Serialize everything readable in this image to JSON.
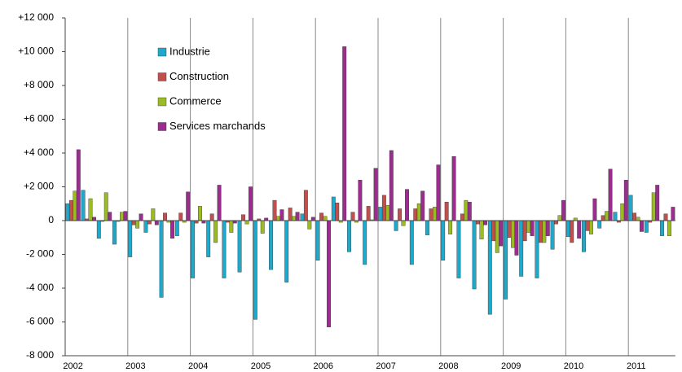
{
  "chart_data": {
    "type": "bar",
    "categories": [
      "2002",
      null,
      null,
      null,
      "2003",
      null,
      null,
      null,
      "2004",
      null,
      null,
      null,
      "2005",
      null,
      null,
      null,
      "2006",
      null,
      null,
      null,
      "2007",
      null,
      null,
      null,
      "2008",
      null,
      null,
      null,
      "2009",
      null,
      null,
      null,
      "2010",
      null,
      null,
      null,
      "2011",
      null,
      null
    ],
    "series": [
      {
        "name": "Industrie",
        "color": "#1fa8c9",
        "values": [
          1000,
          1800,
          -1050,
          -1400,
          -2150,
          -700,
          -4550,
          -900,
          -3400,
          -2150,
          -3400,
          -3050,
          -5850,
          -2900,
          -3650,
          400,
          -2350,
          1400,
          -1850,
          -2600,
          800,
          -600,
          -2600,
          -850,
          -2350,
          -3400,
          -4050,
          -5550,
          -4650,
          -3300,
          -3400,
          -1700,
          -950,
          -1850,
          -450,
          500,
          1500,
          -700,
          -900
        ]
      },
      {
        "name": "Construction",
        "color": "#c0504d",
        "values": [
          1200,
          100,
          -50,
          -50,
          -250,
          -200,
          450,
          450,
          -150,
          400,
          -100,
          350,
          100,
          1200,
          750,
          1800,
          450,
          1050,
          500,
          850,
          1500,
          700,
          700,
          700,
          1100,
          400,
          -200,
          -1200,
          -1000,
          -1200,
          -1300,
          -200,
          -1300,
          -600,
          300,
          -100,
          450,
          -100,
          400
        ]
      },
      {
        "name": "Commerce",
        "color": "#9bbb22",
        "values": [
          1750,
          1300,
          1650,
          500,
          -450,
          700,
          -100,
          -100,
          850,
          -1300,
          -700,
          -200,
          -750,
          250,
          250,
          -500,
          250,
          -100,
          -100,
          50,
          900,
          -300,
          1000,
          800,
          -800,
          1200,
          -1100,
          -1900,
          -1600,
          -700,
          -1300,
          300,
          150,
          -800,
          550,
          1000,
          200,
          1650,
          -900
        ]
      },
      {
        "name": "Services marchands",
        "color": "#9b2d8f",
        "values": [
          4200,
          200,
          500,
          550,
          400,
          -250,
          -1050,
          1700,
          -150,
          2100,
          -150,
          2000,
          150,
          650,
          500,
          200,
          -6300,
          10300,
          2400,
          3100,
          4150,
          1850,
          1750,
          3300,
          3800,
          1100,
          -250,
          -1500,
          -2050,
          -900,
          -900,
          1200,
          -1050,
          1300,
          3050,
          2400,
          -650,
          2100,
          800
        ]
      }
    ],
    "ylim": [
      -8000,
      12000
    ],
    "yticks": [
      {
        "value": -8000,
        "label": "-8 000"
      },
      {
        "value": -6000,
        "label": "-6 000"
      },
      {
        "value": -4000,
        "label": "-4 000"
      },
      {
        "value": -2000,
        "label": "-2 000"
      },
      0,
      {
        "value": 2000,
        "label": "+2 000"
      },
      {
        "value": 4000,
        "label": "+4 000"
      },
      {
        "value": 6000,
        "label": "+6 000"
      },
      {
        "value": 8000,
        "label": "+8 000"
      },
      {
        "value": 10000,
        "label": "+10 000"
      },
      {
        "value": 12000,
        "label": "+12 000"
      }
    ]
  }
}
